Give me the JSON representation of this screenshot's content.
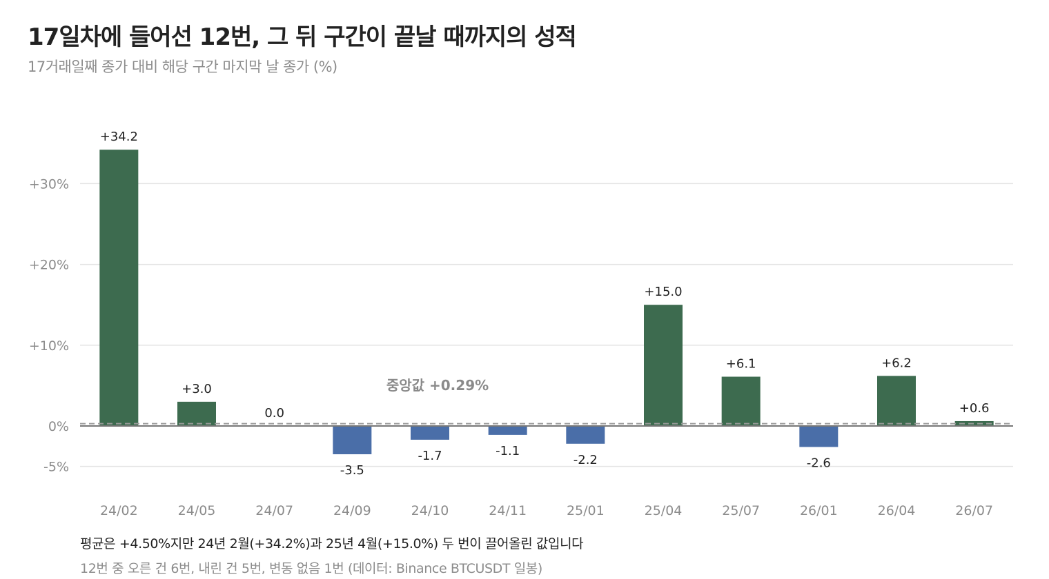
{
  "title": "17일차에 들어선 12번, 그 뒤 구간이 끝날 때까지의 성적",
  "subtitle": "17거래일째 종가 대비 해당 구간 마지막 날 종가 (%)",
  "note": "평균은 +4.50%지만 24년 2월(+34.2%)과 25년 4월(+15.0%) 두 번이 끌어올린 값입니다",
  "source": "12번 중 오른 건 6번, 내린 건 5번, 변동 없음 1번 (데이터: Binance BTCUSDT 일봉)",
  "colors": {
    "up": "#3d6b4f",
    "down": "#4a6ea8",
    "grid": "#e3e3e3",
    "axis": "#8c8c8c",
    "median": "#9a9a9a"
  },
  "chart_data": {
    "type": "bar",
    "categories": [
      "24/02",
      "24/05",
      "24/07",
      "24/09",
      "24/10",
      "24/11",
      "25/01",
      "25/04",
      "25/07",
      "26/01",
      "26/04",
      "26/07"
    ],
    "values": [
      34.2,
      3.0,
      0.0,
      -3.5,
      -1.7,
      -1.1,
      -2.2,
      15.0,
      6.1,
      -2.6,
      6.2,
      0.6
    ],
    "value_labels": [
      "+34.2",
      "+3.0",
      "0.0",
      "-3.5",
      "-1.7",
      "-1.1",
      "-2.2",
      "+15.0",
      "+6.1",
      "-2.6",
      "+6.2",
      "+0.6"
    ],
    "yticks": [
      -5,
      0,
      10,
      20,
      30
    ],
    "ytick_labels": [
      "-5%",
      "0%",
      "+10%",
      "+20%",
      "+30%"
    ],
    "ylim": [
      -7,
      36
    ],
    "grid": true,
    "reference_line": {
      "value": 0.29,
      "label": "중앙값 +0.29%"
    }
  }
}
